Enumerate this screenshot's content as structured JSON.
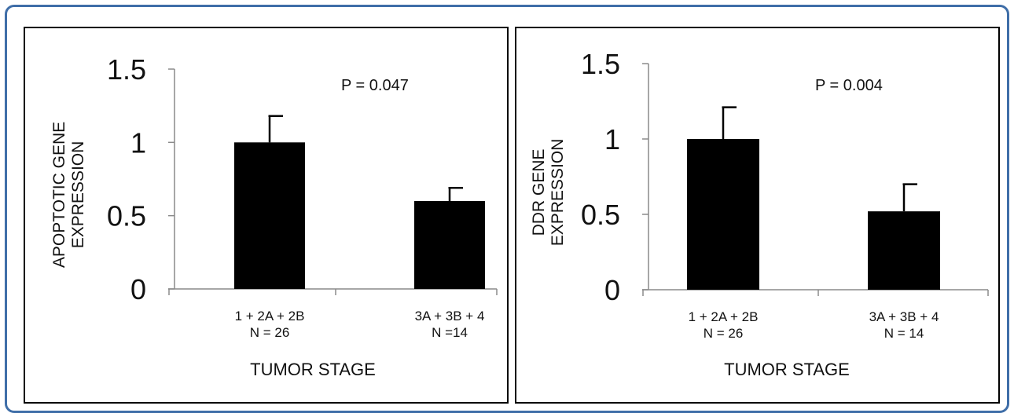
{
  "chart_data": [
    {
      "type": "bar",
      "categories": [
        [
          "1 + 2A + 2B",
          "N = 26"
        ],
        [
          "3A + 3B + 4",
          "N =14"
        ]
      ],
      "values": [
        1.0,
        0.6
      ],
      "errors": [
        0.18,
        0.09
      ],
      "annotation": "P = 0.047",
      "xlabel": "TUMOR STAGE",
      "ylabel": [
        "APOPTOTIC GENE",
        "EXPRESSION"
      ],
      "ylim": [
        0,
        1.5
      ],
      "yticks": [
        "0",
        "0.5",
        "1",
        "1.5"
      ],
      "bar_color": "#000000",
      "grid": false
    },
    {
      "type": "bar",
      "categories": [
        [
          "1 + 2A + 2B",
          "N = 26"
        ],
        [
          "3A + 3B + 4",
          "N = 14"
        ]
      ],
      "values": [
        1.0,
        0.52
      ],
      "errors": [
        0.21,
        0.18
      ],
      "annotation": "P = 0.004",
      "xlabel": "TUMOR STAGE",
      "ylabel": [
        "DDR GENE",
        "EXPRESSION"
      ],
      "ylim": [
        0,
        1.5
      ],
      "yticks": [
        "0",
        "0.5",
        "1",
        "1.5"
      ],
      "bar_color": "#000000",
      "grid": false
    }
  ]
}
